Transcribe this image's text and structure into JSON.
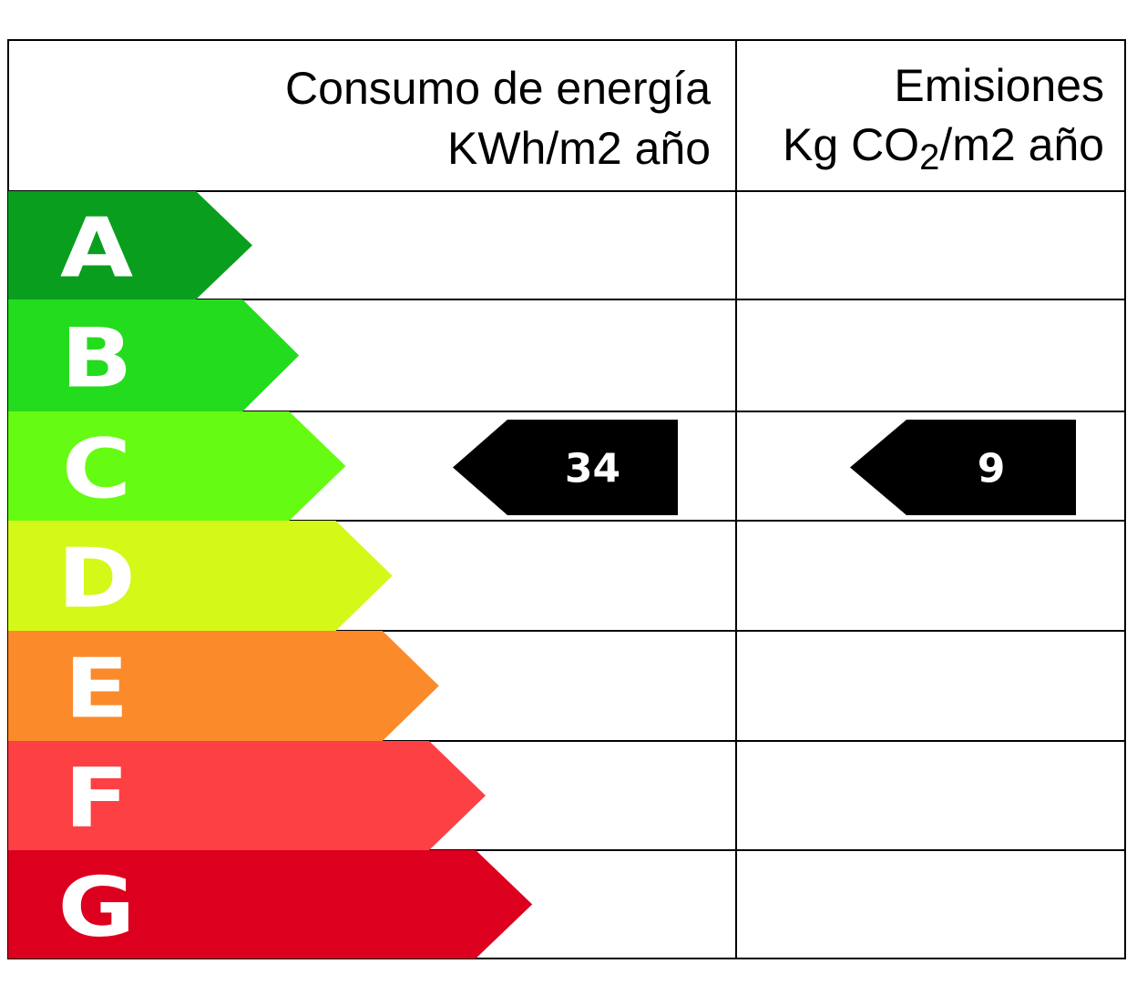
{
  "header": {
    "energy_title": "Consumo de energía",
    "energy_unit": "KWh/m2 año",
    "emissions_title": "Emisiones",
    "emissions_unit_prefix": "Kg CO",
    "emissions_unit_sub": "2",
    "emissions_unit_suffix": "/m2 año"
  },
  "ratings": [
    {
      "letter": "A",
      "color": "#0a9e1e"
    },
    {
      "letter": "B",
      "color": "#24dc1e"
    },
    {
      "letter": "C",
      "color": "#66fb12"
    },
    {
      "letter": "D",
      "color": "#d4f818"
    },
    {
      "letter": "E",
      "color": "#fb8a2a"
    },
    {
      "letter": "F",
      "color": "#fd4044"
    },
    {
      "letter": "G",
      "color": "#dc001e"
    }
  ],
  "energy": {
    "value": "34",
    "rating": "C"
  },
  "emissions": {
    "value": "9",
    "rating": "C"
  },
  "marker_color": "#000000"
}
